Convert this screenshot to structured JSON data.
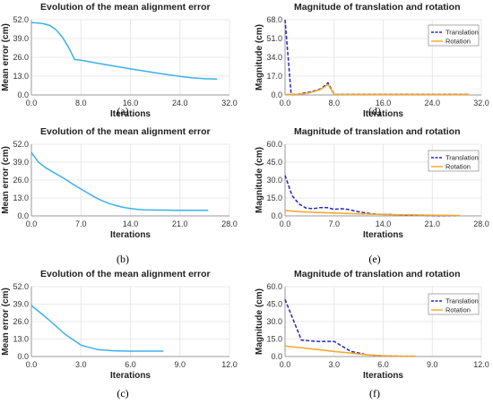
{
  "colors": {
    "error": "#3bb0ee",
    "translation": "#2424c8",
    "rotation": "#f5a623",
    "grid": "#e2e2e2"
  },
  "chart_data": [
    {
      "type": "line",
      "id": "a",
      "title": "Evolution of the mean alignment error",
      "caption": "(a)",
      "xlabel": "Iterations",
      "ylabel": "Mean error (cm)",
      "xlim": [
        0,
        32
      ],
      "ylim": [
        0,
        52
      ],
      "xticks": [
        "0.0",
        "8.0",
        "16.0",
        "24.0",
        "32.0"
      ],
      "yticks": [
        "0.0",
        "13.0",
        "26.0",
        "39.0",
        "52.0"
      ],
      "grid": true,
      "legend": null,
      "series": [
        {
          "name": "",
          "color": "error",
          "dashed": false,
          "x": [
            0,
            1,
            2,
            3,
            4,
            5,
            6,
            7,
            8,
            10,
            12,
            14,
            16,
            18,
            20,
            22,
            24,
            26,
            28,
            30
          ],
          "y": [
            50,
            49.8,
            49.2,
            48,
            45,
            40,
            33,
            24.5,
            24,
            22.5,
            21,
            19.5,
            18,
            16.7,
            15.3,
            14,
            12.8,
            11.8,
            11.2,
            11
          ]
        }
      ]
    },
    {
      "type": "line",
      "id": "d",
      "title": "Magnitude of translation and rotation",
      "caption": "(d)",
      "xlabel": "Iterations",
      "ylabel": "Magnitude (cm)",
      "xlim": [
        0,
        32
      ],
      "ylim": [
        0,
        68
      ],
      "xticks": [
        "0.0",
        "8.0",
        "16.0",
        "24.0",
        "32.0"
      ],
      "yticks": [
        "0.0",
        "17.0",
        "34.0",
        "51.0",
        "68.0"
      ],
      "grid": true,
      "legend": "top-right",
      "series": [
        {
          "name": "Translation",
          "color": "translation",
          "dashed": true,
          "x": [
            0,
            1,
            2,
            3,
            4,
            5,
            6,
            7,
            8,
            10,
            15,
            20,
            25,
            30
          ],
          "y": [
            68,
            0.5,
            0.5,
            1.5,
            2.5,
            4,
            6,
            11,
            0.5,
            0.5,
            0.5,
            0.5,
            0.5,
            0.5
          ]
        },
        {
          "name": "Rotation",
          "color": "rotation",
          "dashed": false,
          "x": [
            0,
            1,
            2,
            3,
            4,
            5,
            6,
            7,
            8,
            10,
            15,
            20,
            25,
            30
          ],
          "y": [
            0.5,
            0.5,
            0.6,
            1,
            2,
            3.5,
            5.5,
            9.5,
            0.6,
            0.4,
            0.4,
            0.4,
            0.4,
            0.4
          ]
        }
      ]
    },
    {
      "type": "line",
      "id": "b",
      "title": "Evolution of the mean alignment error",
      "caption": "(b)",
      "xlabel": "Iterations",
      "ylabel": "Mean error (cm)",
      "xlim": [
        0,
        28
      ],
      "ylim": [
        0,
        52
      ],
      "xticks": [
        "0.0",
        "7.0",
        "14.0",
        "21.0",
        "28.0"
      ],
      "yticks": [
        "0.0",
        "13.0",
        "26.0",
        "39.0",
        "52.0"
      ],
      "grid": true,
      "legend": null,
      "series": [
        {
          "name": "",
          "color": "error",
          "dashed": false,
          "x": [
            0,
            1,
            2,
            3,
            4,
            5,
            6,
            7,
            8,
            9,
            10,
            11,
            12,
            13,
            14,
            15,
            16,
            17,
            18,
            19,
            20,
            21,
            22,
            23,
            24,
            25
          ],
          "y": [
            46,
            39,
            35,
            32,
            29,
            26,
            22.5,
            19.5,
            16.5,
            13.5,
            11,
            9,
            7.5,
            6.2,
            5.3,
            4.7,
            4.4,
            4.3,
            4.2,
            4.2,
            4.1,
            4.1,
            4.1,
            4.1,
            4.1,
            4.1
          ]
        }
      ]
    },
    {
      "type": "line",
      "id": "e",
      "title": "Magnitude of translation and rotation",
      "caption": "(e)",
      "xlabel": "Iterations",
      "ylabel": "Magnitude (cm)",
      "xlim": [
        0,
        28
      ],
      "ylim": [
        0,
        60
      ],
      "xticks": [
        "0.0",
        "7.0",
        "14.0",
        "21.0",
        "28.0"
      ],
      "yticks": [
        "0.0",
        "15.0",
        "30.0",
        "45.0",
        "60.0"
      ],
      "grid": true,
      "legend": "top-right",
      "series": [
        {
          "name": "Translation",
          "color": "translation",
          "dashed": true,
          "x": [
            0,
            1,
            2,
            3,
            4,
            5,
            6,
            7,
            8,
            9,
            10,
            11,
            12,
            13,
            14,
            15,
            16,
            17,
            18,
            19,
            20,
            21,
            22,
            23,
            24,
            25
          ],
          "y": [
            34,
            17,
            10,
            6.5,
            6,
            7,
            7,
            5.5,
            6,
            5.5,
            4,
            3,
            2,
            1.5,
            1.2,
            1.2,
            0.8,
            0.6,
            0.6,
            0.5,
            0.5,
            0.3,
            0.2,
            0.2,
            0.2,
            0.2
          ]
        },
        {
          "name": "Rotation",
          "color": "rotation",
          "dashed": false,
          "x": [
            0,
            2,
            4,
            6,
            8,
            10,
            12,
            14,
            16,
            18,
            20,
            22,
            24,
            25
          ],
          "y": [
            4.5,
            3.5,
            3,
            2.6,
            2.2,
            1.8,
            1.5,
            1.2,
            1,
            0.8,
            0.7,
            0.5,
            0.4,
            0.3
          ]
        }
      ]
    },
    {
      "type": "line",
      "id": "c",
      "title": "Evolution of the mean alignment error",
      "caption": "(c)",
      "xlabel": "Iterations",
      "ylabel": "Mean error (cm)",
      "xlim": [
        0,
        12
      ],
      "ylim": [
        0,
        52
      ],
      "xticks": [
        "0.0",
        "3.0",
        "6.0",
        "9.0",
        "12.0"
      ],
      "yticks": [
        "0.0",
        "13.0",
        "26.0",
        "39.0",
        "52.0"
      ],
      "grid": true,
      "legend": null,
      "series": [
        {
          "name": "",
          "color": "error",
          "dashed": false,
          "x": [
            0,
            1,
            2,
            3,
            4,
            5,
            6,
            7,
            8
          ],
          "y": [
            38,
            28,
            17,
            8.5,
            5.2,
            4.3,
            4,
            4,
            4
          ]
        }
      ]
    },
    {
      "type": "line",
      "id": "f",
      "title": "Magnitude of translation and rotation",
      "caption": "(f)",
      "xlabel": "Iterations",
      "ylabel": "Magnitude (cm)",
      "xlim": [
        0,
        12
      ],
      "ylim": [
        0,
        60
      ],
      "xticks": [
        "0.0",
        "3.0",
        "6.0",
        "9.0",
        "12.0"
      ],
      "yticks": [
        "0.0",
        "15.0",
        "30.0",
        "45.0",
        "60.0"
      ],
      "grid": true,
      "legend": "top-right",
      "series": [
        {
          "name": "Translation",
          "color": "translation",
          "dashed": true,
          "x": [
            0,
            1,
            2,
            3,
            4,
            5,
            6,
            7,
            8
          ],
          "y": [
            49,
            14,
            13,
            13,
            4.5,
            1.5,
            0.6,
            0.3,
            0.3
          ]
        },
        {
          "name": "Rotation",
          "color": "rotation",
          "dashed": false,
          "x": [
            0,
            1,
            2,
            3,
            4,
            5,
            6,
            7,
            8
          ],
          "y": [
            9,
            7.5,
            6,
            4.3,
            3,
            1.5,
            0.6,
            0.3,
            0.3
          ]
        }
      ]
    }
  ]
}
